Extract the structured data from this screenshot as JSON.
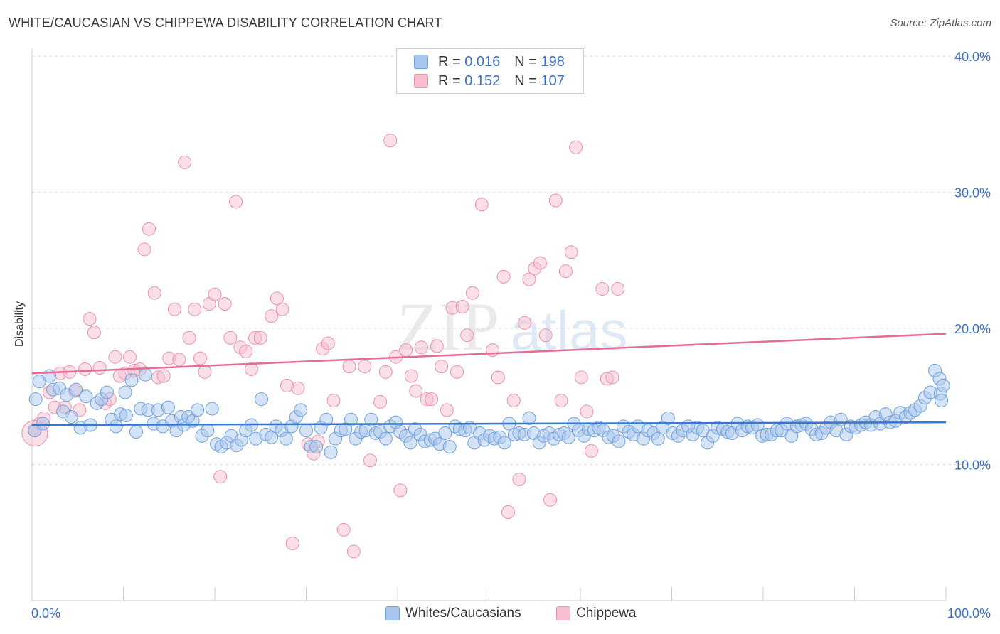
{
  "title": "WHITE/CAUCASIAN VS CHIPPEWA DISABILITY CORRELATION CHART",
  "source": "Source: ZipAtlas.com",
  "watermark": {
    "zip": "ZIP",
    "atlas": "atlas"
  },
  "legend": {
    "r_label": "R =",
    "n_label": "N =",
    "blue": {
      "r": "0.016",
      "n": "198"
    },
    "pink": {
      "r": "0.152",
      "n": "107"
    }
  },
  "bottom_legend": {
    "blue": "Whites/Caucasians",
    "pink": "Chippewa"
  },
  "colors": {
    "blue_fill": "#a9c7ee",
    "blue_stroke": "#6f9fd8",
    "blue_line": "#3478d4",
    "pink_fill": "#f6bfd0",
    "pink_stroke": "#e991ad",
    "pink_line": "#e56c96",
    "axis_text": "#3b6fc4"
  },
  "chart_data": {
    "type": "scatter",
    "title": "WHITE/CAUCASIAN VS CHIPPEWA DISABILITY CORRELATION CHART",
    "xlabel": "",
    "ylabel": "Disability",
    "xlim": [
      0,
      100
    ],
    "ylim": [
      0,
      40
    ],
    "x_tick_labels": [
      "0.0%",
      "100.0%"
    ],
    "y_ticks": [
      10,
      20,
      30,
      40
    ],
    "y_tick_labels": [
      "10.0%",
      "20.0%",
      "30.0%",
      "40.0%"
    ],
    "grid": true,
    "series": [
      {
        "name": "Whites/Caucasians",
        "r": 0.016,
        "n": 198,
        "trend": {
          "x": [
            0,
            100
          ],
          "y": [
            12.9,
            13.1
          ]
        },
        "points": [
          [
            0.3,
            12.5
          ],
          [
            0.4,
            14.8
          ],
          [
            0.8,
            16.1
          ],
          [
            1.2,
            13
          ],
          [
            1.9,
            16.5
          ],
          [
            2.3,
            15.5
          ],
          [
            3,
            15.6
          ],
          [
            3.4,
            13.9
          ],
          [
            3.8,
            15.1
          ],
          [
            4.3,
            13.5
          ],
          [
            4.8,
            15.5
          ],
          [
            5.3,
            12.7
          ],
          [
            5.9,
            15
          ],
          [
            6.4,
            12.9
          ],
          [
            7.1,
            14.5
          ],
          [
            7.6,
            14.8
          ],
          [
            8.2,
            15.3
          ],
          [
            8.7,
            13.3
          ],
          [
            9.2,
            12.8
          ],
          [
            9.7,
            13.7
          ],
          [
            10.2,
            15.3
          ],
          [
            10.3,
            13.6
          ],
          [
            10.9,
            16.2
          ],
          [
            11.4,
            12.4
          ],
          [
            11.9,
            14.1
          ],
          [
            12.4,
            16.6
          ],
          [
            12.7,
            14
          ],
          [
            13.3,
            13
          ],
          [
            13.8,
            14
          ],
          [
            14.3,
            12.8
          ],
          [
            14.9,
            14.2
          ],
          [
            15.3,
            13.2
          ],
          [
            15.8,
            12.5
          ],
          [
            16.3,
            13.5
          ],
          [
            16.6,
            12.9
          ],
          [
            17.1,
            13.5
          ],
          [
            17.6,
            13.2
          ],
          [
            18.1,
            14
          ],
          [
            18.6,
            12.1
          ],
          [
            19.2,
            12.5
          ],
          [
            19.7,
            14.1
          ],
          [
            20.2,
            11.5
          ],
          [
            20.7,
            11.3
          ],
          [
            21.3,
            11.6
          ],
          [
            21.8,
            12.1
          ],
          [
            22.4,
            11.4
          ],
          [
            22.9,
            11.8
          ],
          [
            23.4,
            12.5
          ],
          [
            24,
            12.9
          ],
          [
            24.5,
            11.9
          ],
          [
            25.1,
            14.8
          ],
          [
            25.6,
            12.2
          ],
          [
            26.2,
            12
          ],
          [
            26.7,
            12.8
          ],
          [
            27.3,
            12.5
          ],
          [
            27.8,
            11.9
          ],
          [
            28.4,
            12.8
          ],
          [
            28.9,
            13.5
          ],
          [
            29.4,
            14
          ],
          [
            30,
            12.5
          ],
          [
            30.5,
            11.3
          ],
          [
            31.1,
            11.3
          ],
          [
            31.6,
            12.7
          ],
          [
            32.2,
            13.3
          ],
          [
            32.7,
            10.9
          ],
          [
            33.2,
            11.9
          ],
          [
            33.8,
            12.5
          ],
          [
            34.3,
            12.6
          ],
          [
            34.9,
            13.3
          ],
          [
            35.4,
            11.9
          ],
          [
            36,
            12.4
          ],
          [
            36.5,
            12.5
          ],
          [
            37.1,
            13.3
          ],
          [
            37.6,
            12.3
          ],
          [
            38.1,
            12.4
          ],
          [
            38.7,
            11.9
          ],
          [
            39.2,
            12.8
          ],
          [
            39.8,
            13.1
          ],
          [
            40.3,
            12.4
          ],
          [
            40.9,
            12.1
          ],
          [
            41.4,
            11.6
          ],
          [
            41.9,
            12.6
          ],
          [
            42.5,
            12.2
          ],
          [
            43,
            11.7
          ],
          [
            43.6,
            11.8
          ],
          [
            44.1,
            11.9
          ],
          [
            44.6,
            11.5
          ],
          [
            45.2,
            12.3
          ],
          [
            45.7,
            11.3
          ],
          [
            46.3,
            12.8
          ],
          [
            46.8,
            12.6
          ],
          [
            47.4,
            12.5
          ],
          [
            47.9,
            12.7
          ],
          [
            48.4,
            11.6
          ],
          [
            49,
            12.3
          ],
          [
            49.5,
            11.8
          ],
          [
            50.1,
            12.1
          ],
          [
            50.6,
            11.9
          ],
          [
            51.2,
            12
          ],
          [
            51.7,
            11.6
          ],
          [
            52.2,
            13
          ],
          [
            52.8,
            12.2
          ],
          [
            53.3,
            12.3
          ],
          [
            53.9,
            12.2
          ],
          [
            54.4,
            13.4
          ],
          [
            54.9,
            12.3
          ],
          [
            55.5,
            11.6
          ],
          [
            56,
            12.1
          ],
          [
            56.6,
            12.3
          ],
          [
            57.1,
            11.9
          ],
          [
            57.7,
            12.2
          ],
          [
            58.2,
            12.3
          ],
          [
            58.7,
            12
          ],
          [
            59.3,
            13
          ],
          [
            59.8,
            12.5
          ],
          [
            60.4,
            12.1
          ],
          [
            60.9,
            12.6
          ],
          [
            61.5,
            12.5
          ],
          [
            62,
            12.7
          ],
          [
            62.5,
            12.5
          ],
          [
            63.1,
            12
          ],
          [
            63.6,
            12.1
          ],
          [
            64.2,
            11.7
          ],
          [
            64.7,
            12.8
          ],
          [
            65.3,
            12.4
          ],
          [
            65.8,
            12.2
          ],
          [
            66.3,
            12.8
          ],
          [
            66.9,
            11.9
          ],
          [
            67.4,
            12.5
          ],
          [
            68,
            12.3
          ],
          [
            68.5,
            11.9
          ],
          [
            69,
            12.7
          ],
          [
            69.6,
            13.4
          ],
          [
            70.1,
            12.3
          ],
          [
            70.7,
            12.1
          ],
          [
            71.2,
            12.5
          ],
          [
            71.8,
            12.8
          ],
          [
            72.3,
            12.2
          ],
          [
            72.8,
            12.7
          ],
          [
            73.4,
            12.5
          ],
          [
            73.9,
            11.6
          ],
          [
            74.5,
            12.1
          ],
          [
            75,
            12.7
          ],
          [
            75.6,
            12.6
          ],
          [
            76.1,
            12.4
          ],
          [
            76.6,
            12.3
          ],
          [
            77.2,
            13
          ],
          [
            77.7,
            12.5
          ],
          [
            78.3,
            12.8
          ],
          [
            78.8,
            12.7
          ],
          [
            79.4,
            12.9
          ],
          [
            79.9,
            12.1
          ],
          [
            80.4,
            12.2
          ],
          [
            80.9,
            12.2
          ],
          [
            81.5,
            12.5
          ],
          [
            82,
            12.5
          ],
          [
            82.6,
            13
          ],
          [
            83.1,
            12.1
          ],
          [
            83.7,
            12.8
          ],
          [
            84.2,
            12.9
          ],
          [
            84.7,
            13
          ],
          [
            85.3,
            12.6
          ],
          [
            85.8,
            12.2
          ],
          [
            86.4,
            12.3
          ],
          [
            86.9,
            12.7
          ],
          [
            87.4,
            13.1
          ],
          [
            88,
            12.5
          ],
          [
            88.5,
            13.3
          ],
          [
            89.1,
            12.2
          ],
          [
            89.6,
            12.8
          ],
          [
            90.1,
            12.7
          ],
          [
            90.7,
            12.9
          ],
          [
            91.2,
            13.1
          ],
          [
            91.8,
            12.9
          ],
          [
            92.3,
            13.5
          ],
          [
            92.8,
            13
          ],
          [
            93.4,
            13.7
          ],
          [
            93.9,
            13.1
          ],
          [
            94.5,
            13.2
          ],
          [
            95,
            13.8
          ],
          [
            95.6,
            13.5
          ],
          [
            96.1,
            13.8
          ],
          [
            96.6,
            14
          ],
          [
            97.2,
            14.3
          ],
          [
            97.7,
            14.9
          ],
          [
            98.3,
            15.3
          ],
          [
            98.8,
            16.9
          ],
          [
            99.3,
            16.3
          ],
          [
            99.4,
            15.2
          ],
          [
            99.5,
            14.7
          ],
          [
            99.7,
            15.8
          ]
        ]
      },
      {
        "name": "Chippewa",
        "r": 0.152,
        "n": 107,
        "trend": {
          "x": [
            0,
            100
          ],
          "y": [
            16.7,
            19.6
          ]
        },
        "points": [
          [
            0.3,
            12.5
          ],
          [
            0.8,
            13
          ],
          [
            1.3,
            13.4
          ],
          [
            1.9,
            15.3
          ],
          [
            2.5,
            14.2
          ],
          [
            3.1,
            16.7
          ],
          [
            3.6,
            14.2
          ],
          [
            4.1,
            16.8
          ],
          [
            4.7,
            15.4
          ],
          [
            5.2,
            14
          ],
          [
            5.8,
            17
          ],
          [
            6.3,
            20.7
          ],
          [
            6.8,
            19.7
          ],
          [
            7.4,
            17.1
          ],
          [
            8,
            14.5
          ],
          [
            8.5,
            14.8
          ],
          [
            9.1,
            17.9
          ],
          [
            9.6,
            16.5
          ],
          [
            10.2,
            16.7
          ],
          [
            10.7,
            17.9
          ],
          [
            11.2,
            16.9
          ],
          [
            11.8,
            17
          ],
          [
            12.3,
            25.8
          ],
          [
            12.8,
            27.3
          ],
          [
            13.4,
            22.6
          ],
          [
            13.8,
            16.4
          ],
          [
            14.4,
            16.5
          ],
          [
            15,
            17.8
          ],
          [
            15.6,
            21.4
          ],
          [
            16.1,
            17.7
          ],
          [
            16.7,
            32.2
          ],
          [
            17.2,
            19.3
          ],
          [
            17.8,
            21.4
          ],
          [
            18.4,
            17.8
          ],
          [
            18.9,
            16.8
          ],
          [
            19.4,
            21.8
          ],
          [
            20,
            22.5
          ],
          [
            20.6,
            9.1
          ],
          [
            21.1,
            21.8
          ],
          [
            21.7,
            19.3
          ],
          [
            22.3,
            29.3
          ],
          [
            22.8,
            18.6
          ],
          [
            23.4,
            18.3
          ],
          [
            24,
            17
          ],
          [
            24.4,
            19.3
          ],
          [
            25,
            19.3
          ],
          [
            26.2,
            20.9
          ],
          [
            26.8,
            22.2
          ],
          [
            27.4,
            21.4
          ],
          [
            27.9,
            15.8
          ],
          [
            28.5,
            4.2
          ],
          [
            29.1,
            15.6
          ],
          [
            30.2,
            11.5
          ],
          [
            30.8,
            10.8
          ],
          [
            31.3,
            11.7
          ],
          [
            31.8,
            18.5
          ],
          [
            32.4,
            18.9
          ],
          [
            33,
            14.7
          ],
          [
            34.1,
            5.2
          ],
          [
            34.7,
            17.2
          ],
          [
            35.2,
            3.6
          ],
          [
            36.4,
            17.2
          ],
          [
            37,
            10.3
          ],
          [
            38.1,
            14.6
          ],
          [
            38.7,
            16.8
          ],
          [
            39.2,
            33.8
          ],
          [
            39.8,
            17.9
          ],
          [
            40.3,
            8.1
          ],
          [
            40.9,
            18.4
          ],
          [
            41.5,
            16.5
          ],
          [
            42,
            15.4
          ],
          [
            42.6,
            18.6
          ],
          [
            43.2,
            14.8
          ],
          [
            43.7,
            14.8
          ],
          [
            44.3,
            18.7
          ],
          [
            44.8,
            17.2
          ],
          [
            45.4,
            14
          ],
          [
            46,
            21.5
          ],
          [
            46.5,
            16.8
          ],
          [
            47.1,
            21.6
          ],
          [
            47.6,
            19.5
          ],
          [
            48.2,
            22.6
          ],
          [
            49.2,
            29.1
          ],
          [
            50.4,
            18.4
          ],
          [
            51,
            16.4
          ],
          [
            51.6,
            23.8
          ],
          [
            52.1,
            6.5
          ],
          [
            52.7,
            14.7
          ],
          [
            53.3,
            8.9
          ],
          [
            53.9,
            20.4
          ],
          [
            54.4,
            23.6
          ],
          [
            55,
            24.4
          ],
          [
            55.6,
            24.8
          ],
          [
            56.2,
            19.5
          ],
          [
            56.7,
            7.4
          ],
          [
            57.3,
            29.4
          ],
          [
            57.9,
            14.7
          ],
          [
            58.4,
            24.2
          ],
          [
            59,
            25.6
          ],
          [
            59.5,
            33.3
          ],
          [
            60.1,
            16.4
          ],
          [
            60.7,
            13.9
          ],
          [
            61.2,
            11
          ],
          [
            62.4,
            22.9
          ],
          [
            62.9,
            16.3
          ],
          [
            63.5,
            16.4
          ],
          [
            64.1,
            22.9
          ]
        ]
      }
    ]
  }
}
